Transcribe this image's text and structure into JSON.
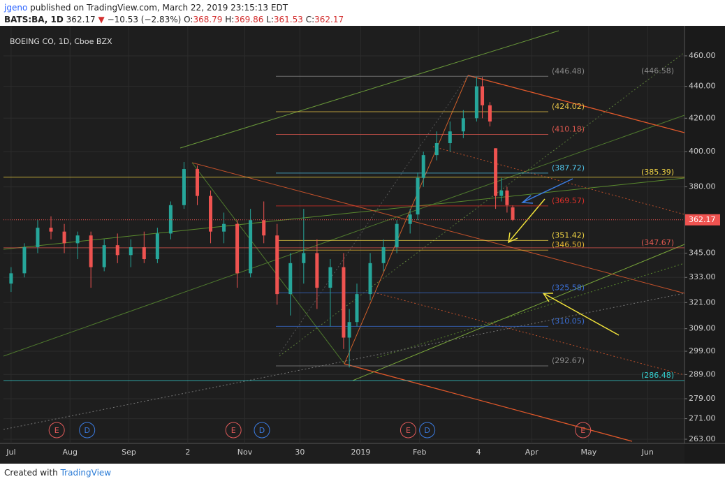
{
  "header": {
    "user": "jgeno",
    "published": "published on TradingView.com, March 22, 2019 23:15:13 EDT",
    "symbol": "BATS:BA, 1D",
    "last": "362.17",
    "change": "−10.53 (−2.83%)",
    "ohlc": [
      {
        "label": "O:",
        "value": "368.79"
      },
      {
        "label": "H:",
        "value": "369.86"
      },
      {
        "label": "L:",
        "value": "361.53"
      },
      {
        "label": "C:",
        "value": "362.17"
      }
    ]
  },
  "footer": {
    "text": "Created with",
    "brand": "TradingView"
  },
  "chart_data": {
    "type": "candlestick",
    "legend": "BOEING CO, 1D, Cboe BZX",
    "log_scale": true,
    "ylim": [
      262.2,
      479.1
    ],
    "yticks": [
      {
        "value": 460,
        "label": "460.00"
      },
      {
        "value": 440,
        "label": "440.00"
      },
      {
        "value": 420,
        "label": "420.00"
      },
      {
        "value": 400,
        "label": "400.00"
      },
      {
        "value": 380,
        "label": "380.00"
      },
      {
        "value": 345,
        "label": "345.00"
      },
      {
        "value": 333,
        "label": "333.00"
      },
      {
        "value": 321,
        "label": "321.00"
      },
      {
        "value": 309,
        "label": "309.00"
      },
      {
        "value": 299,
        "label": "299.00"
      },
      {
        "value": 289,
        "label": "289.00"
      },
      {
        "value": 279,
        "label": "279.00"
      },
      {
        "value": 271,
        "label": "271.00"
      },
      {
        "value": 263,
        "label": "263.00"
      }
    ],
    "xlim": [
      -4,
      354.4
    ],
    "xticks": [
      {
        "value": 0,
        "label": "Jul"
      },
      {
        "value": 31,
        "label": "Aug"
      },
      {
        "value": 62,
        "label": "Sep"
      },
      {
        "value": 93,
        "label": "2"
      },
      {
        "value": 123,
        "label": "Nov"
      },
      {
        "value": 152,
        "label": "30"
      },
      {
        "value": 184,
        "label": "2019"
      },
      {
        "value": 215,
        "label": "Feb"
      },
      {
        "value": 246,
        "label": "4"
      },
      {
        "value": 274,
        "label": "Apr"
      },
      {
        "value": 304,
        "label": "May"
      },
      {
        "value": 335,
        "label": "Jun"
      }
    ],
    "candles": {
      "x": [
        0,
        7,
        14,
        21,
        28,
        35,
        42,
        49,
        56,
        63,
        70,
        77,
        84,
        91,
        98,
        105,
        112,
        119,
        126,
        133,
        140,
        147,
        154,
        161,
        168,
        175,
        178,
        182,
        189,
        196,
        203,
        210,
        214,
        217,
        224,
        231,
        238,
        245,
        248,
        252,
        255,
        258,
        261,
        264
      ],
      "open": [
        330,
        335,
        348,
        358,
        356,
        350,
        354,
        338,
        349,
        344,
        348,
        342,
        355,
        370,
        390,
        375,
        356,
        360,
        335,
        362,
        354,
        325,
        340,
        345,
        328,
        338,
        305,
        312,
        325,
        340,
        348,
        360,
        365,
        385,
        398,
        405,
        412,
        420,
        440,
        428,
        402,
        375,
        378,
        368.79
      ],
      "high": [
        338,
        350,
        362,
        364,
        360,
        356,
        356,
        352,
        355,
        352,
        356,
        358,
        372,
        394,
        392,
        378,
        366,
        362,
        368,
        372,
        360,
        345,
        368,
        352,
        342,
        345,
        318,
        330,
        345,
        352,
        362,
        368,
        388,
        400,
        412,
        418,
        425,
        446,
        446,
        430,
        402,
        385,
        380,
        369.86
      ],
      "low": [
        326,
        333,
        345,
        352,
        345,
        342,
        328,
        336,
        340,
        338,
        340,
        340,
        352,
        368,
        370,
        350,
        350,
        328,
        333,
        350,
        320,
        315,
        330,
        318,
        310,
        300,
        292,
        310,
        322,
        336,
        345,
        355,
        362,
        380,
        395,
        400,
        408,
        418,
        420,
        415,
        368,
        372,
        366,
        361.53
      ],
      "close": [
        335,
        348,
        358,
        356,
        350,
        354,
        338,
        349,
        344,
        348,
        342,
        355,
        370,
        390,
        375,
        356,
        360,
        335,
        362,
        354,
        325,
        340,
        345,
        328,
        338,
        305,
        312,
        325,
        340,
        348,
        360,
        365,
        385,
        398,
        405,
        412,
        420,
        440,
        428,
        418,
        375,
        378,
        370,
        362.17
      ]
    },
    "last_price": {
      "value": 362.17,
      "label": "362.17"
    },
    "levels": [
      {
        "value": 446.48,
        "label": "(446.48)",
        "color": "#8a8a8a"
      },
      {
        "value": 446.58,
        "label": "(446.58)",
        "color": "#8a8a8a"
      },
      {
        "value": 424.02,
        "label": "(424.02)",
        "color": "#e8c547"
      },
      {
        "value": 410.18,
        "label": "(410.18)",
        "color": "#e0584f"
      },
      {
        "value": 387.72,
        "label": "(387.72)",
        "color": "#4fc3e8"
      },
      {
        "value": 385.39,
        "label": "(385.39)",
        "color": "#f2d544"
      },
      {
        "value": 369.57,
        "label": "(369.57)",
        "color": "#e0302a"
      },
      {
        "value": 351.42,
        "label": "(351.42)",
        "color": "#f2d544"
      },
      {
        "value": 346.5,
        "label": "(346.50)",
        "color": "#e8b832"
      },
      {
        "value": 347.67,
        "label": "(347.67)",
        "color": "#e0584f"
      },
      {
        "value": 325.58,
        "label": "(325.58)",
        "color": "#3b6fd6"
      },
      {
        "value": 310.05,
        "label": "(310.05)",
        "color": "#3b6fd6"
      },
      {
        "value": 292.67,
        "label": "(292.67)",
        "color": "#8a8a8a"
      },
      {
        "value": 286.48,
        "label": "(286.48)",
        "color": "#35d0d0"
      }
    ],
    "events": [
      {
        "label": "E",
        "x": 24
      },
      {
        "label": "D",
        "x": 40
      },
      {
        "label": "E",
        "x": 117
      },
      {
        "label": "D",
        "x": 132
      },
      {
        "label": "E",
        "x": 209
      },
      {
        "label": "D",
        "x": 219
      },
      {
        "label": "E",
        "x": 301
      }
    ]
  }
}
